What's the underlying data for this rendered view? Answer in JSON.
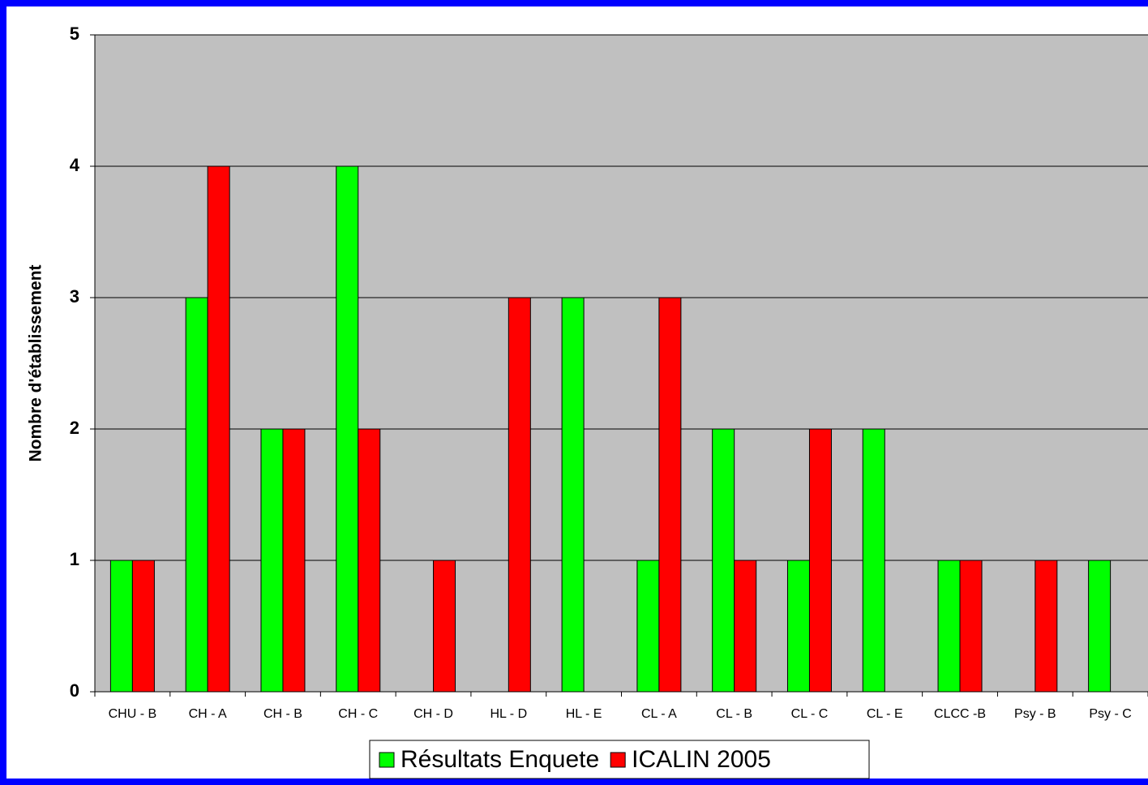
{
  "chart_data": {
    "type": "bar",
    "y_label": "Nombre d'établissement",
    "categories": [
      "CHU - B",
      "CH - A",
      "CH - B",
      "CH - C",
      "CH - D",
      "HL - D",
      "HL - E",
      "CL - A",
      "CL - B",
      "CL - C",
      "CL - E",
      "CLCC -B",
      "Psy - B",
      "Psy - C"
    ],
    "series": [
      {
        "name": "Résultats Enquete",
        "color": "#00ff00",
        "values": [
          1,
          3,
          2,
          4,
          0,
          0,
          3,
          1,
          2,
          1,
          2,
          1,
          0,
          1
        ]
      },
      {
        "name": "ICALIN 2005",
        "color": "#ff0000",
        "values": [
          1,
          4,
          2,
          2,
          1,
          3,
          0,
          3,
          1,
          2,
          0,
          1,
          1,
          0
        ]
      }
    ],
    "ylim": [
      0,
      5
    ],
    "yticks": [
      0,
      1,
      2,
      3,
      4,
      5
    ],
    "grid": true,
    "legend": "bottom"
  }
}
